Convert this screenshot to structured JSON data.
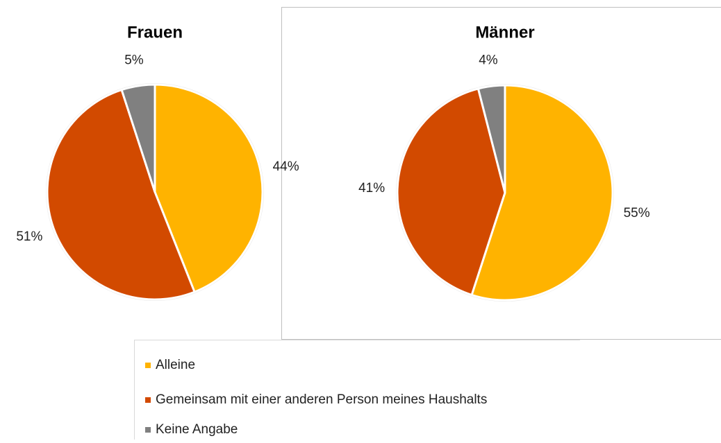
{
  "legend": [
    {
      "name": "Alleine",
      "color": "#ffb300"
    },
    {
      "name": "Gemeinsam mit einer anderen Person meines Haushalts",
      "color": "#d24a00"
    },
    {
      "name": "Keine Angabe",
      "color": "#808080"
    }
  ],
  "chart_data": [
    {
      "type": "pie",
      "title": "Frauen",
      "values": [
        44,
        51,
        5
      ],
      "value_labels": [
        "44%",
        "51%",
        "5%"
      ]
    },
    {
      "type": "pie",
      "title": "Männer",
      "values": [
        55,
        41,
        4
      ],
      "value_labels": [
        "55%",
        "41%",
        "4%"
      ]
    }
  ]
}
